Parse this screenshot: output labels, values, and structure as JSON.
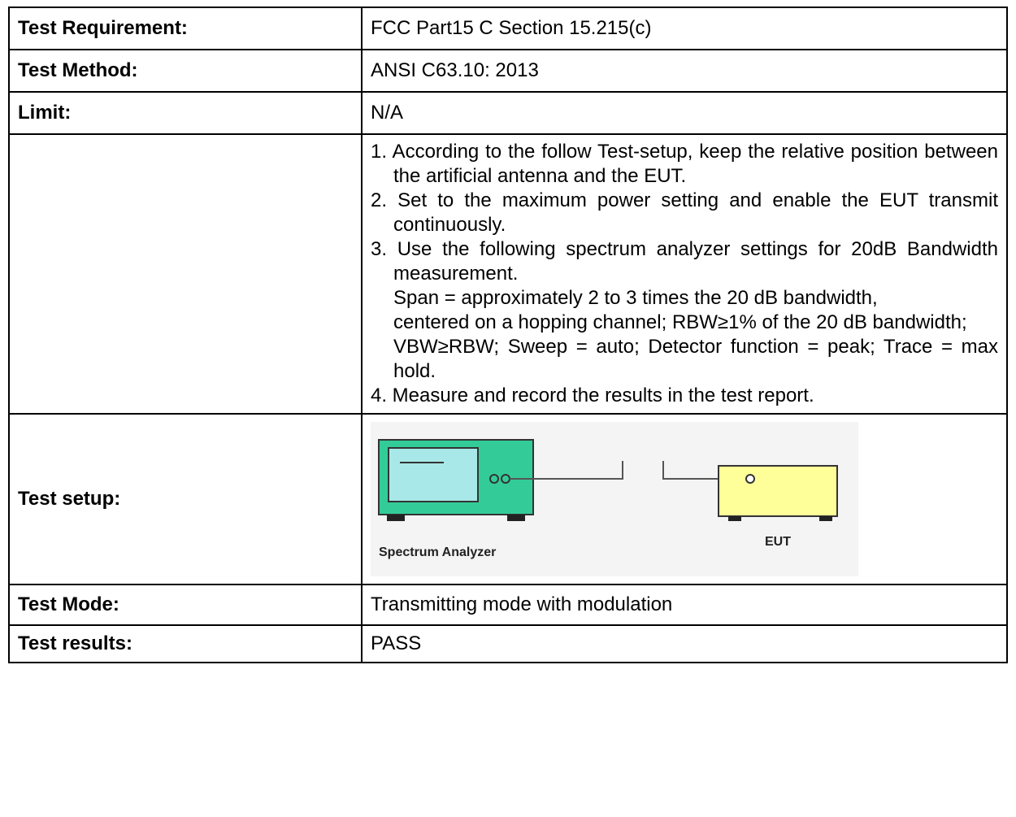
{
  "table": {
    "rows": [
      {
        "label": "Test Requirement:",
        "value": "FCC Part15 C Section 15.215(c)"
      },
      {
        "label": "Test Method:",
        "value": "ANSI C63.10: 2013"
      },
      {
        "label": "Limit:",
        "value": "N/A"
      },
      {
        "items": [
          {
            "text": "1. According to the follow Test-setup, keep the relative position between the artificial antenna and the EUT."
          },
          {
            "text": "2. Set to the maximum power setting and enable the EUT transmit continuously."
          },
          {
            "text": "3. Use the following spectrum analyzer settings for 20dB Bandwidth measurement.",
            "notes": [
              "Span = approximately 2 to 3 times the 20 dB bandwidth,",
              "centered on a hopping channel; RBW≥1% of the 20 dB bandwidth;",
              "VBW≥RBW; Sweep = auto; Detector function = peak; Trace = max hold."
            ]
          },
          {
            "text": "4. Measure and record the results in the test report."
          }
        ]
      },
      {
        "label": "Test setup:",
        "diagram": {
          "analyzer": "Spectrum Analyzer",
          "eut": "EUT"
        }
      },
      {
        "label": "Test Mode:",
        "value": "Transmitting mode with modulation"
      },
      {
        "label": "Test results:",
        "value": "PASS"
      }
    ]
  }
}
